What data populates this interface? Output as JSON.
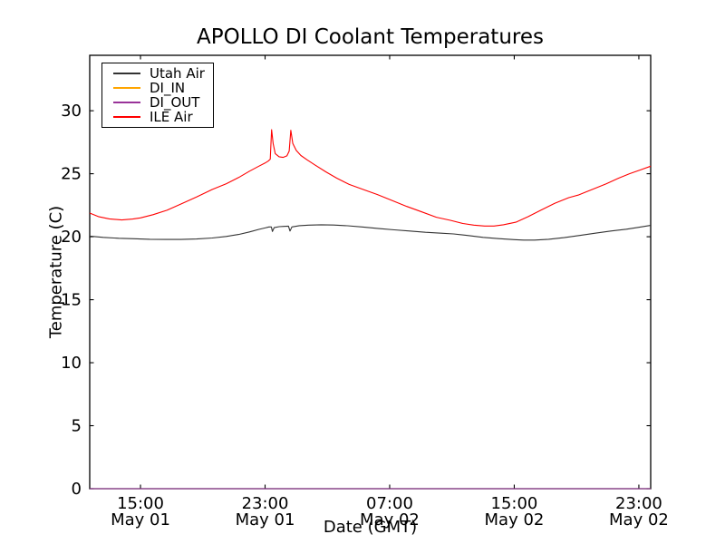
{
  "figure": {
    "background": "#ffffff",
    "frame_color": "#000000"
  },
  "chart_data": {
    "type": "line",
    "title": "APOLLO DI Coolant Temperatures",
    "xlabel": "Date (GMT)",
    "ylabel": "Temperature (C)",
    "grid": false,
    "legend_position": "upper left",
    "x_unit": "hours since May 01 00:00 GMT",
    "xlim": [
      11.74,
      47.76
    ],
    "ylim": [
      0,
      34.4
    ],
    "xticks": [
      {
        "value": 15,
        "time": "15:00",
        "date": "May 01"
      },
      {
        "value": 23,
        "time": "23:00",
        "date": "May 01"
      },
      {
        "value": 31,
        "time": "07:00",
        "date": "May 02"
      },
      {
        "value": 39,
        "time": "15:00",
        "date": "May 02"
      },
      {
        "value": 47,
        "time": "23:00",
        "date": "May 02"
      }
    ],
    "yticks": [
      0,
      5,
      10,
      15,
      20,
      25,
      30
    ],
    "series": [
      {
        "name": "Utah Air",
        "color": "#333333",
        "points": [
          [
            11.74,
            20.05
          ],
          [
            12.6,
            19.95
          ],
          [
            13.6,
            19.88
          ],
          [
            14.6,
            19.84
          ],
          [
            15.6,
            19.8
          ],
          [
            16.6,
            19.78
          ],
          [
            17.6,
            19.78
          ],
          [
            18.6,
            19.82
          ],
          [
            19.6,
            19.9
          ],
          [
            20.5,
            20.02
          ],
          [
            21.3,
            20.18
          ],
          [
            22.0,
            20.38
          ],
          [
            22.6,
            20.58
          ],
          [
            23.0,
            20.7
          ],
          [
            23.25,
            20.78
          ],
          [
            23.4,
            20.78
          ],
          [
            23.47,
            20.42
          ],
          [
            23.58,
            20.72
          ],
          [
            23.9,
            20.8
          ],
          [
            24.2,
            20.82
          ],
          [
            24.5,
            20.84
          ],
          [
            24.6,
            20.45
          ],
          [
            24.72,
            20.78
          ],
          [
            25.2,
            20.88
          ],
          [
            25.8,
            20.92
          ],
          [
            26.6,
            20.95
          ],
          [
            27.4,
            20.93
          ],
          [
            28.3,
            20.87
          ],
          [
            29.3,
            20.77
          ],
          [
            30.3,
            20.65
          ],
          [
            31.3,
            20.55
          ],
          [
            32.3,
            20.45
          ],
          [
            33.3,
            20.35
          ],
          [
            34.3,
            20.28
          ],
          [
            35.1,
            20.22
          ],
          [
            36.0,
            20.1
          ],
          [
            37.0,
            19.95
          ],
          [
            38.0,
            19.85
          ],
          [
            39.0,
            19.77
          ],
          [
            39.6,
            19.73
          ],
          [
            40.3,
            19.73
          ],
          [
            41.2,
            19.8
          ],
          [
            42.2,
            19.93
          ],
          [
            43.2,
            20.1
          ],
          [
            44.2,
            20.28
          ],
          [
            45.2,
            20.45
          ],
          [
            46.2,
            20.6
          ],
          [
            47.0,
            20.75
          ],
          [
            47.76,
            20.9
          ]
        ]
      },
      {
        "name": "DI_IN",
        "color": "#ffa500",
        "points": [
          [
            11.74,
            0
          ],
          [
            47.76,
            0
          ]
        ]
      },
      {
        "name": "DI_OUT",
        "color": "#993399",
        "points": [
          [
            11.74,
            0
          ],
          [
            47.76,
            0
          ]
        ]
      },
      {
        "name": "ILE Air",
        "color": "#ff0000",
        "points": [
          [
            11.74,
            21.88
          ],
          [
            12.3,
            21.6
          ],
          [
            13.0,
            21.42
          ],
          [
            13.8,
            21.33
          ],
          [
            14.5,
            21.4
          ],
          [
            15.0,
            21.5
          ],
          [
            15.8,
            21.75
          ],
          [
            16.7,
            22.1
          ],
          [
            17.6,
            22.6
          ],
          [
            18.6,
            23.15
          ],
          [
            19.6,
            23.75
          ],
          [
            20.5,
            24.2
          ],
          [
            21.3,
            24.7
          ],
          [
            22.0,
            25.2
          ],
          [
            22.6,
            25.6
          ],
          [
            23.0,
            25.85
          ],
          [
            23.2,
            26.0
          ],
          [
            23.33,
            26.15
          ],
          [
            23.42,
            28.5
          ],
          [
            23.52,
            27.4
          ],
          [
            23.65,
            26.6
          ],
          [
            23.9,
            26.35
          ],
          [
            24.15,
            26.3
          ],
          [
            24.4,
            26.42
          ],
          [
            24.55,
            26.8
          ],
          [
            24.65,
            28.45
          ],
          [
            24.78,
            27.4
          ],
          [
            25.0,
            26.85
          ],
          [
            25.3,
            26.45
          ],
          [
            25.7,
            26.1
          ],
          [
            26.2,
            25.7
          ],
          [
            26.9,
            25.15
          ],
          [
            27.6,
            24.65
          ],
          [
            28.4,
            24.15
          ],
          [
            29.3,
            23.75
          ],
          [
            30.2,
            23.35
          ],
          [
            31.1,
            22.9
          ],
          [
            32.1,
            22.4
          ],
          [
            33.0,
            22.0
          ],
          [
            34.0,
            21.55
          ],
          [
            34.9,
            21.3
          ],
          [
            35.7,
            21.05
          ],
          [
            36.4,
            20.92
          ],
          [
            37.1,
            20.85
          ],
          [
            37.7,
            20.85
          ],
          [
            38.3,
            20.95
          ],
          [
            39.1,
            21.15
          ],
          [
            39.9,
            21.6
          ],
          [
            40.7,
            22.1
          ],
          [
            41.6,
            22.65
          ],
          [
            42.5,
            23.1
          ],
          [
            43.1,
            23.3
          ],
          [
            43.6,
            23.55
          ],
          [
            44.2,
            23.85
          ],
          [
            44.9,
            24.2
          ],
          [
            45.7,
            24.65
          ],
          [
            46.4,
            25.0
          ],
          [
            47.1,
            25.3
          ],
          [
            47.76,
            25.6
          ]
        ]
      }
    ]
  }
}
